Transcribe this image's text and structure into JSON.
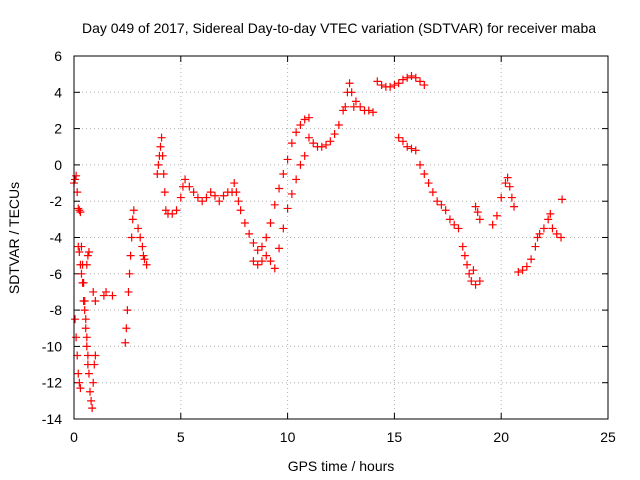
{
  "chart_data": {
    "type": "scatter",
    "title": "Day 049 of 2017, Sidereal Day-to-day VTEC variation (SDTVAR) for receiver maba",
    "xlabel": "GPS time / hours",
    "ylabel": "SDTVAR / TECUs",
    "xlim": [
      0,
      25
    ],
    "ylim": [
      -14,
      6
    ],
    "xticks": [
      0,
      5,
      10,
      15,
      20,
      25
    ],
    "yticks": [
      -14,
      -12,
      -10,
      -8,
      -6,
      -4,
      -2,
      0,
      2,
      4,
      6
    ],
    "grid": true,
    "marker": "plus",
    "color": "#ff0000",
    "series": [
      {
        "points": [
          [
            0.0,
            -1.0
          ],
          [
            0.05,
            -0.8
          ],
          [
            0.1,
            -0.6
          ],
          [
            0.15,
            -1.5
          ],
          [
            0.2,
            -2.4
          ],
          [
            0.25,
            -2.5
          ],
          [
            0.3,
            -2.6
          ],
          [
            0.35,
            -4.5
          ],
          [
            0.4,
            -5.5
          ],
          [
            0.45,
            -6.5
          ],
          [
            0.5,
            -7.5
          ],
          [
            0.55,
            -8.5
          ],
          [
            0.6,
            -9.5
          ],
          [
            0.65,
            -10.5
          ],
          [
            0.7,
            -11.5
          ],
          [
            0.75,
            -12.5
          ],
          [
            0.8,
            -13.0
          ],
          [
            0.85,
            -13.4
          ],
          [
            0.9,
            -12.0
          ],
          [
            0.95,
            -11.0
          ],
          [
            1.0,
            -10.5
          ],
          [
            0.05,
            -8.5
          ],
          [
            0.1,
            -9.5
          ],
          [
            0.15,
            -10.5
          ],
          [
            0.2,
            -11.5
          ],
          [
            0.25,
            -12.0
          ],
          [
            0.3,
            -12.3
          ],
          [
            0.2,
            -4.5
          ],
          [
            0.25,
            -4.8
          ],
          [
            0.3,
            -5.5
          ],
          [
            0.35,
            -6.0
          ],
          [
            0.4,
            -6.5
          ],
          [
            0.45,
            -7.5
          ],
          [
            0.5,
            -8.0
          ],
          [
            0.55,
            -9.0
          ],
          [
            0.6,
            -10.0
          ],
          [
            0.65,
            -11.0
          ],
          [
            0.6,
            -5.5
          ],
          [
            0.65,
            -5.0
          ],
          [
            0.7,
            -4.8
          ],
          [
            0.9,
            -7.0
          ],
          [
            1.0,
            -7.5
          ],
          [
            1.4,
            -7.2
          ],
          [
            1.5,
            -7.0
          ],
          [
            1.8,
            -7.2
          ],
          [
            2.4,
            -9.8
          ],
          [
            2.45,
            -9.0
          ],
          [
            2.5,
            -8.0
          ],
          [
            2.55,
            -7.0
          ],
          [
            2.6,
            -6.0
          ],
          [
            2.65,
            -5.0
          ],
          [
            2.7,
            -4.0
          ],
          [
            2.75,
            -3.0
          ],
          [
            2.8,
            -2.5
          ],
          [
            3.0,
            -3.5
          ],
          [
            3.1,
            -4.0
          ],
          [
            3.2,
            -4.5
          ],
          [
            3.25,
            -5.0
          ],
          [
            3.3,
            -5.2
          ],
          [
            3.4,
            -5.5
          ],
          [
            3.9,
            -0.5
          ],
          [
            3.95,
            0.0
          ],
          [
            4.0,
            0.5
          ],
          [
            4.05,
            1.0
          ],
          [
            4.1,
            1.5
          ],
          [
            4.15,
            0.5
          ],
          [
            4.2,
            -0.5
          ],
          [
            4.25,
            -1.5
          ],
          [
            4.3,
            -2.5
          ],
          [
            4.4,
            -2.7
          ],
          [
            4.6,
            -2.7
          ],
          [
            4.8,
            -2.5
          ],
          [
            5.0,
            -1.8
          ],
          [
            5.1,
            -1.2
          ],
          [
            5.2,
            -0.8
          ],
          [
            5.4,
            -1.2
          ],
          [
            5.6,
            -1.5
          ],
          [
            5.8,
            -1.8
          ],
          [
            6.0,
            -2.0
          ],
          [
            6.2,
            -1.8
          ],
          [
            6.4,
            -1.5
          ],
          [
            6.6,
            -1.7
          ],
          [
            6.8,
            -2.0
          ],
          [
            7.0,
            -1.7
          ],
          [
            7.2,
            -1.5
          ],
          [
            7.4,
            -1.5
          ],
          [
            7.5,
            -1.0
          ],
          [
            7.6,
            -1.5
          ],
          [
            7.7,
            -2.0
          ],
          [
            7.8,
            -2.5
          ],
          [
            8.0,
            -3.2
          ],
          [
            8.2,
            -3.8
          ],
          [
            8.4,
            -4.3
          ],
          [
            8.6,
            -4.7
          ],
          [
            8.8,
            -4.5
          ],
          [
            9.0,
            -4.0
          ],
          [
            9.2,
            -3.2
          ],
          [
            9.4,
            -2.2
          ],
          [
            9.6,
            -1.3
          ],
          [
            9.8,
            -0.5
          ],
          [
            10.0,
            0.3
          ],
          [
            10.2,
            1.2
          ],
          [
            10.4,
            1.8
          ],
          [
            10.6,
            2.2
          ],
          [
            10.8,
            2.5
          ],
          [
            11.0,
            2.6
          ],
          [
            8.4,
            -5.3
          ],
          [
            8.6,
            -5.5
          ],
          [
            8.8,
            -5.3
          ],
          [
            9.0,
            -5.0
          ],
          [
            9.2,
            -5.3
          ],
          [
            9.4,
            -5.7
          ],
          [
            9.6,
            -4.6
          ],
          [
            9.8,
            -3.5
          ],
          [
            10.0,
            -2.4
          ],
          [
            10.2,
            -1.6
          ],
          [
            10.4,
            -0.8
          ],
          [
            10.6,
            0.0
          ],
          [
            10.8,
            0.5
          ],
          [
            11.0,
            1.5
          ],
          [
            11.2,
            1.2
          ],
          [
            11.4,
            1.0
          ],
          [
            11.6,
            1.0
          ],
          [
            11.8,
            1.1
          ],
          [
            12.0,
            1.3
          ],
          [
            12.2,
            1.7
          ],
          [
            12.4,
            2.2
          ],
          [
            12.6,
            3.0
          ],
          [
            12.7,
            3.2
          ],
          [
            12.8,
            4.0
          ],
          [
            12.9,
            4.5
          ],
          [
            13.0,
            4.0
          ],
          [
            13.1,
            3.2
          ],
          [
            13.2,
            3.5
          ],
          [
            13.4,
            3.2
          ],
          [
            13.6,
            3.0
          ],
          [
            13.8,
            3.0
          ],
          [
            14.0,
            2.9
          ],
          [
            14.2,
            4.6
          ],
          [
            14.4,
            4.4
          ],
          [
            14.6,
            4.3
          ],
          [
            14.8,
            4.3
          ],
          [
            15.0,
            4.4
          ],
          [
            15.2,
            4.5
          ],
          [
            15.4,
            4.7
          ],
          [
            15.6,
            4.8
          ],
          [
            15.8,
            4.9
          ],
          [
            16.0,
            4.8
          ],
          [
            16.2,
            4.6
          ],
          [
            16.4,
            4.4
          ],
          [
            15.2,
            1.5
          ],
          [
            15.4,
            1.3
          ],
          [
            15.6,
            1.0
          ],
          [
            15.8,
            0.9
          ],
          [
            16.0,
            0.8
          ],
          [
            16.2,
            0.0
          ],
          [
            16.4,
            -0.5
          ],
          [
            16.6,
            -1.0
          ],
          [
            16.8,
            -1.5
          ],
          [
            17.0,
            -2.0
          ],
          [
            17.2,
            -2.2
          ],
          [
            17.4,
            -2.5
          ],
          [
            17.6,
            -3.0
          ],
          [
            17.8,
            -3.3
          ],
          [
            18.0,
            -3.5
          ],
          [
            18.2,
            -4.5
          ],
          [
            18.3,
            -5.0
          ],
          [
            18.4,
            -5.5
          ],
          [
            18.5,
            -6.0
          ],
          [
            18.6,
            -6.4
          ],
          [
            18.8,
            -6.6
          ],
          [
            19.0,
            -6.4
          ],
          [
            18.7,
            -5.8
          ],
          [
            18.8,
            -2.3
          ],
          [
            18.9,
            -2.6
          ],
          [
            19.0,
            -3.0
          ],
          [
            19.6,
            -3.3
          ],
          [
            19.8,
            -2.8
          ],
          [
            20.0,
            -1.8
          ],
          [
            20.2,
            -1.0
          ],
          [
            20.3,
            -0.7
          ],
          [
            20.4,
            -1.2
          ],
          [
            20.5,
            -1.8
          ],
          [
            20.6,
            -2.3
          ],
          [
            20.8,
            -5.9
          ],
          [
            21.0,
            -5.8
          ],
          [
            21.2,
            -5.6
          ],
          [
            21.4,
            -5.2
          ],
          [
            21.6,
            -4.5
          ],
          [
            21.7,
            -4.0
          ],
          [
            21.8,
            -3.8
          ],
          [
            22.0,
            -3.5
          ],
          [
            22.2,
            -3.0
          ],
          [
            22.3,
            -2.7
          ],
          [
            22.4,
            -3.5
          ],
          [
            22.6,
            -3.8
          ],
          [
            22.8,
            -4.0
          ],
          [
            22.85,
            -1.9
          ]
        ]
      }
    ]
  }
}
